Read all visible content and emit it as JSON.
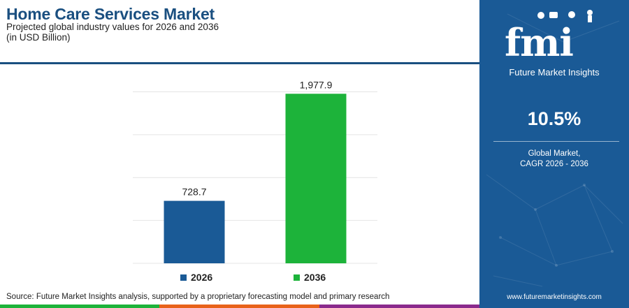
{
  "header": {
    "title": "Home Care Services Market",
    "subtitle": "Projected global industry values for 2026 and 2036",
    "unit": "(in USD Billion)"
  },
  "chart_data": {
    "type": "bar",
    "categories": [
      "2026",
      "2036"
    ],
    "values": [
      728.7,
      1977.9
    ],
    "value_labels": [
      "728.7",
      "1,977.9"
    ],
    "colors": [
      "#1a5a96",
      "#1db33a"
    ],
    "legend": [
      "2026",
      "2036"
    ],
    "legend_position": "bottom",
    "ylim": [
      0,
      2200
    ],
    "grid": true,
    "title": "Home Care Services Market",
    "xlabel": "",
    "ylabel": ""
  },
  "source": "Source: Future Market Insights analysis, supported by a proprietary forecasting model and primary research",
  "side_panel": {
    "logo_text": "fmi",
    "logo_subtitle": "Future Market Insights",
    "cagr_value": "10.5%",
    "cagr_label_line1": "Global Market,",
    "cagr_label_line2": "CAGR 2026 - 2036",
    "website": "www.futuremarketinsights.com",
    "background_color": "#1a5a96"
  },
  "stripe_colors": [
    "#1db33a",
    "#e8621a",
    "#8a2a8c",
    "#1a5a96"
  ]
}
